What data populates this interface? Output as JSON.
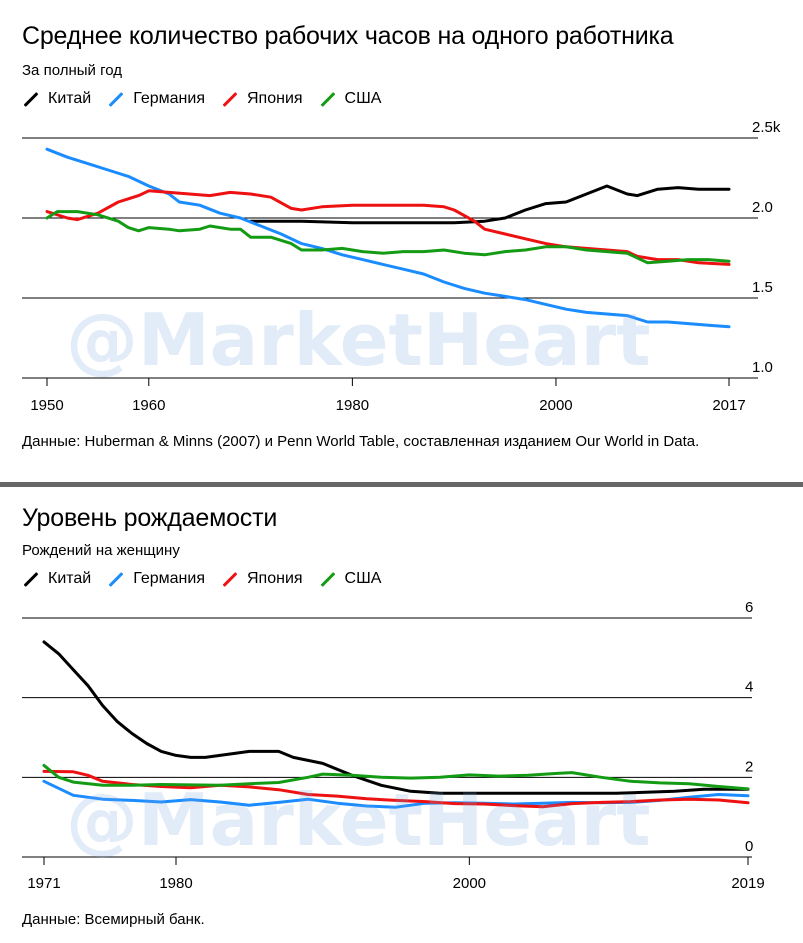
{
  "watermark": "@MarketHeart",
  "chart_data": [
    {
      "type": "line",
      "title": "Среднее количество рабочих часов на одного работника",
      "subtitle": "За полный год",
      "ylim": [
        1.0,
        2.5
      ],
      "y_ticks": [
        {
          "value": 2.5,
          "label": "2.5k"
        },
        {
          "value": 2.0,
          "label": "2.0"
        },
        {
          "value": 1.5,
          "label": "1.5"
        },
        {
          "value": 1.0,
          "label": "1.0"
        }
      ],
      "xlim": [
        1950,
        2017
      ],
      "x_ticks": [
        1950,
        1960,
        1980,
        2000,
        2017
      ],
      "grid": true,
      "legend_position": "top-left",
      "series": [
        {
          "name": "Китай",
          "color": "#000000",
          "points": [
            [
              1970,
              1.98
            ],
            [
              1975,
              1.98
            ],
            [
              1980,
              1.97
            ],
            [
              1985,
              1.97
            ],
            [
              1990,
              1.97
            ],
            [
              1993,
              1.98
            ],
            [
              1995,
              2.0
            ],
            [
              1997,
              2.05
            ],
            [
              1999,
              2.09
            ],
            [
              2001,
              2.1
            ],
            [
              2003,
              2.15
            ],
            [
              2005,
              2.2
            ],
            [
              2007,
              2.15
            ],
            [
              2008,
              2.14
            ],
            [
              2010,
              2.18
            ],
            [
              2012,
              2.19
            ],
            [
              2014,
              2.18
            ],
            [
              2017,
              2.18
            ]
          ]
        },
        {
          "name": "Германия",
          "color": "#1a8cff",
          "points": [
            [
              1950,
              2.43
            ],
            [
              1952,
              2.38
            ],
            [
              1954,
              2.34
            ],
            [
              1956,
              2.3
            ],
            [
              1958,
              2.26
            ],
            [
              1960,
              2.2
            ],
            [
              1962,
              2.15
            ],
            [
              1963,
              2.1
            ],
            [
              1965,
              2.08
            ],
            [
              1967,
              2.03
            ],
            [
              1969,
              2.0
            ],
            [
              1971,
              1.95
            ],
            [
              1973,
              1.9
            ],
            [
              1975,
              1.84
            ],
            [
              1977,
              1.81
            ],
            [
              1979,
              1.77
            ],
            [
              1981,
              1.74
            ],
            [
              1983,
              1.71
            ],
            [
              1985,
              1.68
            ],
            [
              1987,
              1.65
            ],
            [
              1989,
              1.6
            ],
            [
              1991,
              1.56
            ],
            [
              1993,
              1.53
            ],
            [
              1995,
              1.51
            ],
            [
              1997,
              1.49
            ],
            [
              1999,
              1.46
            ],
            [
              2001,
              1.43
            ],
            [
              2003,
              1.41
            ],
            [
              2005,
              1.4
            ],
            [
              2007,
              1.39
            ],
            [
              2009,
              1.35
            ],
            [
              2011,
              1.35
            ],
            [
              2013,
              1.34
            ],
            [
              2015,
              1.33
            ],
            [
              2017,
              1.32
            ]
          ]
        },
        {
          "name": "Япония",
          "color": "#ee1111",
          "points": [
            [
              1950,
              2.04
            ],
            [
              1952,
              2.0
            ],
            [
              1953,
              1.99
            ],
            [
              1955,
              2.03
            ],
            [
              1957,
              2.1
            ],
            [
              1959,
              2.14
            ],
            [
              1960,
              2.17
            ],
            [
              1962,
              2.16
            ],
            [
              1964,
              2.15
            ],
            [
              1966,
              2.14
            ],
            [
              1968,
              2.16
            ],
            [
              1970,
              2.15
            ],
            [
              1972,
              2.13
            ],
            [
              1974,
              2.06
            ],
            [
              1975,
              2.05
            ],
            [
              1977,
              2.07
            ],
            [
              1980,
              2.08
            ],
            [
              1983,
              2.08
            ],
            [
              1985,
              2.08
            ],
            [
              1987,
              2.08
            ],
            [
              1989,
              2.07
            ],
            [
              1990,
              2.05
            ],
            [
              1992,
              1.98
            ],
            [
              1993,
              1.93
            ],
            [
              1995,
              1.9
            ],
            [
              1997,
              1.87
            ],
            [
              1999,
              1.84
            ],
            [
              2001,
              1.82
            ],
            [
              2003,
              1.81
            ],
            [
              2005,
              1.8
            ],
            [
              2007,
              1.79
            ],
            [
              2008,
              1.76
            ],
            [
              2010,
              1.74
            ],
            [
              2012,
              1.74
            ],
            [
              2014,
              1.72
            ],
            [
              2017,
              1.71
            ]
          ]
        },
        {
          "name": "США",
          "color": "#149b14",
          "points": [
            [
              1950,
              2.0
            ],
            [
              1951,
              2.04
            ],
            [
              1953,
              2.04
            ],
            [
              1955,
              2.02
            ],
            [
              1957,
              1.98
            ],
            [
              1958,
              1.94
            ],
            [
              1959,
              1.92
            ],
            [
              1960,
              1.94
            ],
            [
              1962,
              1.93
            ],
            [
              1963,
              1.92
            ],
            [
              1965,
              1.93
            ],
            [
              1966,
              1.95
            ],
            [
              1968,
              1.93
            ],
            [
              1969,
              1.93
            ],
            [
              1970,
              1.88
            ],
            [
              1972,
              1.88
            ],
            [
              1974,
              1.84
            ],
            [
              1975,
              1.8
            ],
            [
              1977,
              1.8
            ],
            [
              1979,
              1.81
            ],
            [
              1981,
              1.79
            ],
            [
              1983,
              1.78
            ],
            [
              1985,
              1.79
            ],
            [
              1987,
              1.79
            ],
            [
              1989,
              1.8
            ],
            [
              1991,
              1.78
            ],
            [
              1993,
              1.77
            ],
            [
              1995,
              1.79
            ],
            [
              1997,
              1.8
            ],
            [
              1999,
              1.82
            ],
            [
              2001,
              1.82
            ],
            [
              2003,
              1.8
            ],
            [
              2005,
              1.79
            ],
            [
              2007,
              1.78
            ],
            [
              2009,
              1.72
            ],
            [
              2011,
              1.73
            ],
            [
              2013,
              1.74
            ],
            [
              2015,
              1.74
            ],
            [
              2017,
              1.73
            ]
          ]
        }
      ],
      "source": "Данные: Huberman & Minns (2007) и Penn World Table, составленная изданием Our World in Data."
    },
    {
      "type": "line",
      "title": "Уровень рождаемости",
      "subtitle": "Рождений на женщину",
      "ylim": [
        0,
        6
      ],
      "y_ticks": [
        {
          "value": 6,
          "label": "6"
        },
        {
          "value": 4,
          "label": "4"
        },
        {
          "value": 2,
          "label": "2"
        },
        {
          "value": 0,
          "label": "0"
        }
      ],
      "xlim": [
        1971,
        2019
      ],
      "x_ticks": [
        1971,
        1980,
        2000,
        2019
      ],
      "grid": true,
      "legend_position": "top-left",
      "series": [
        {
          "name": "Китай",
          "color": "#000000",
          "points": [
            [
              1971,
              5.4
            ],
            [
              1972,
              5.1
            ],
            [
              1973,
              4.7
            ],
            [
              1974,
              4.3
            ],
            [
              1975,
              3.8
            ],
            [
              1976,
              3.4
            ],
            [
              1977,
              3.1
            ],
            [
              1978,
              2.85
            ],
            [
              1979,
              2.65
            ],
            [
              1980,
              2.55
            ],
            [
              1981,
              2.5
            ],
            [
              1982,
              2.5
            ],
            [
              1983,
              2.55
            ],
            [
              1984,
              2.6
            ],
            [
              1985,
              2.65
            ],
            [
              1987,
              2.65
            ],
            [
              1988,
              2.5
            ],
            [
              1990,
              2.35
            ],
            [
              1992,
              2.05
            ],
            [
              1994,
              1.8
            ],
            [
              1996,
              1.65
            ],
            [
              1998,
              1.6
            ],
            [
              2000,
              1.6
            ],
            [
              2005,
              1.6
            ],
            [
              2010,
              1.6
            ],
            [
              2014,
              1.65
            ],
            [
              2016,
              1.7
            ],
            [
              2019,
              1.7
            ]
          ]
        },
        {
          "name": "Германия",
          "color": "#1a8cff",
          "points": [
            [
              1971,
              1.9
            ],
            [
              1973,
              1.55
            ],
            [
              1975,
              1.45
            ],
            [
              1977,
              1.42
            ],
            [
              1979,
              1.38
            ],
            [
              1981,
              1.44
            ],
            [
              1983,
              1.38
            ],
            [
              1985,
              1.3
            ],
            [
              1987,
              1.37
            ],
            [
              1989,
              1.45
            ],
            [
              1991,
              1.35
            ],
            [
              1993,
              1.28
            ],
            [
              1995,
              1.25
            ],
            [
              1997,
              1.35
            ],
            [
              1999,
              1.36
            ],
            [
              2001,
              1.35
            ],
            [
              2003,
              1.33
            ],
            [
              2005,
              1.35
            ],
            [
              2007,
              1.37
            ],
            [
              2009,
              1.36
            ],
            [
              2011,
              1.37
            ],
            [
              2013,
              1.42
            ],
            [
              2015,
              1.5
            ],
            [
              2017,
              1.57
            ],
            [
              2019,
              1.54
            ]
          ]
        },
        {
          "name": "Япония",
          "color": "#ee1111",
          "points": [
            [
              1971,
              2.15
            ],
            [
              1973,
              2.14
            ],
            [
              1974,
              2.05
            ],
            [
              1975,
              1.9
            ],
            [
              1977,
              1.82
            ],
            [
              1979,
              1.77
            ],
            [
              1981,
              1.74
            ],
            [
              1983,
              1.8
            ],
            [
              1985,
              1.76
            ],
            [
              1987,
              1.69
            ],
            [
              1989,
              1.57
            ],
            [
              1991,
              1.53
            ],
            [
              1993,
              1.46
            ],
            [
              1995,
              1.42
            ],
            [
              1997,
              1.39
            ],
            [
              1999,
              1.34
            ],
            [
              2001,
              1.33
            ],
            [
              2003,
              1.29
            ],
            [
              2005,
              1.26
            ],
            [
              2007,
              1.34
            ],
            [
              2009,
              1.37
            ],
            [
              2011,
              1.39
            ],
            [
              2013,
              1.43
            ],
            [
              2015,
              1.45
            ],
            [
              2017,
              1.43
            ],
            [
              2019,
              1.36
            ]
          ]
        },
        {
          "name": "США",
          "color": "#149b14",
          "points": [
            [
              1971,
              2.3
            ],
            [
              1972,
              2.0
            ],
            [
              1973,
              1.88
            ],
            [
              1975,
              1.8
            ],
            [
              1977,
              1.8
            ],
            [
              1979,
              1.82
            ],
            [
              1981,
              1.81
            ],
            [
              1983,
              1.8
            ],
            [
              1985,
              1.84
            ],
            [
              1987,
              1.87
            ],
            [
              1989,
              2.0
            ],
            [
              1990,
              2.08
            ],
            [
              1992,
              2.05
            ],
            [
              1994,
              2.0
            ],
            [
              1996,
              1.98
            ],
            [
              1998,
              2.0
            ],
            [
              2000,
              2.06
            ],
            [
              2002,
              2.03
            ],
            [
              2004,
              2.05
            ],
            [
              2006,
              2.1
            ],
            [
              2007,
              2.12
            ],
            [
              2009,
              2.0
            ],
            [
              2011,
              1.9
            ],
            [
              2013,
              1.86
            ],
            [
              2015,
              1.84
            ],
            [
              2017,
              1.77
            ],
            [
              2019,
              1.71
            ]
          ]
        }
      ],
      "source": "Данные: Всемирный банк."
    }
  ]
}
